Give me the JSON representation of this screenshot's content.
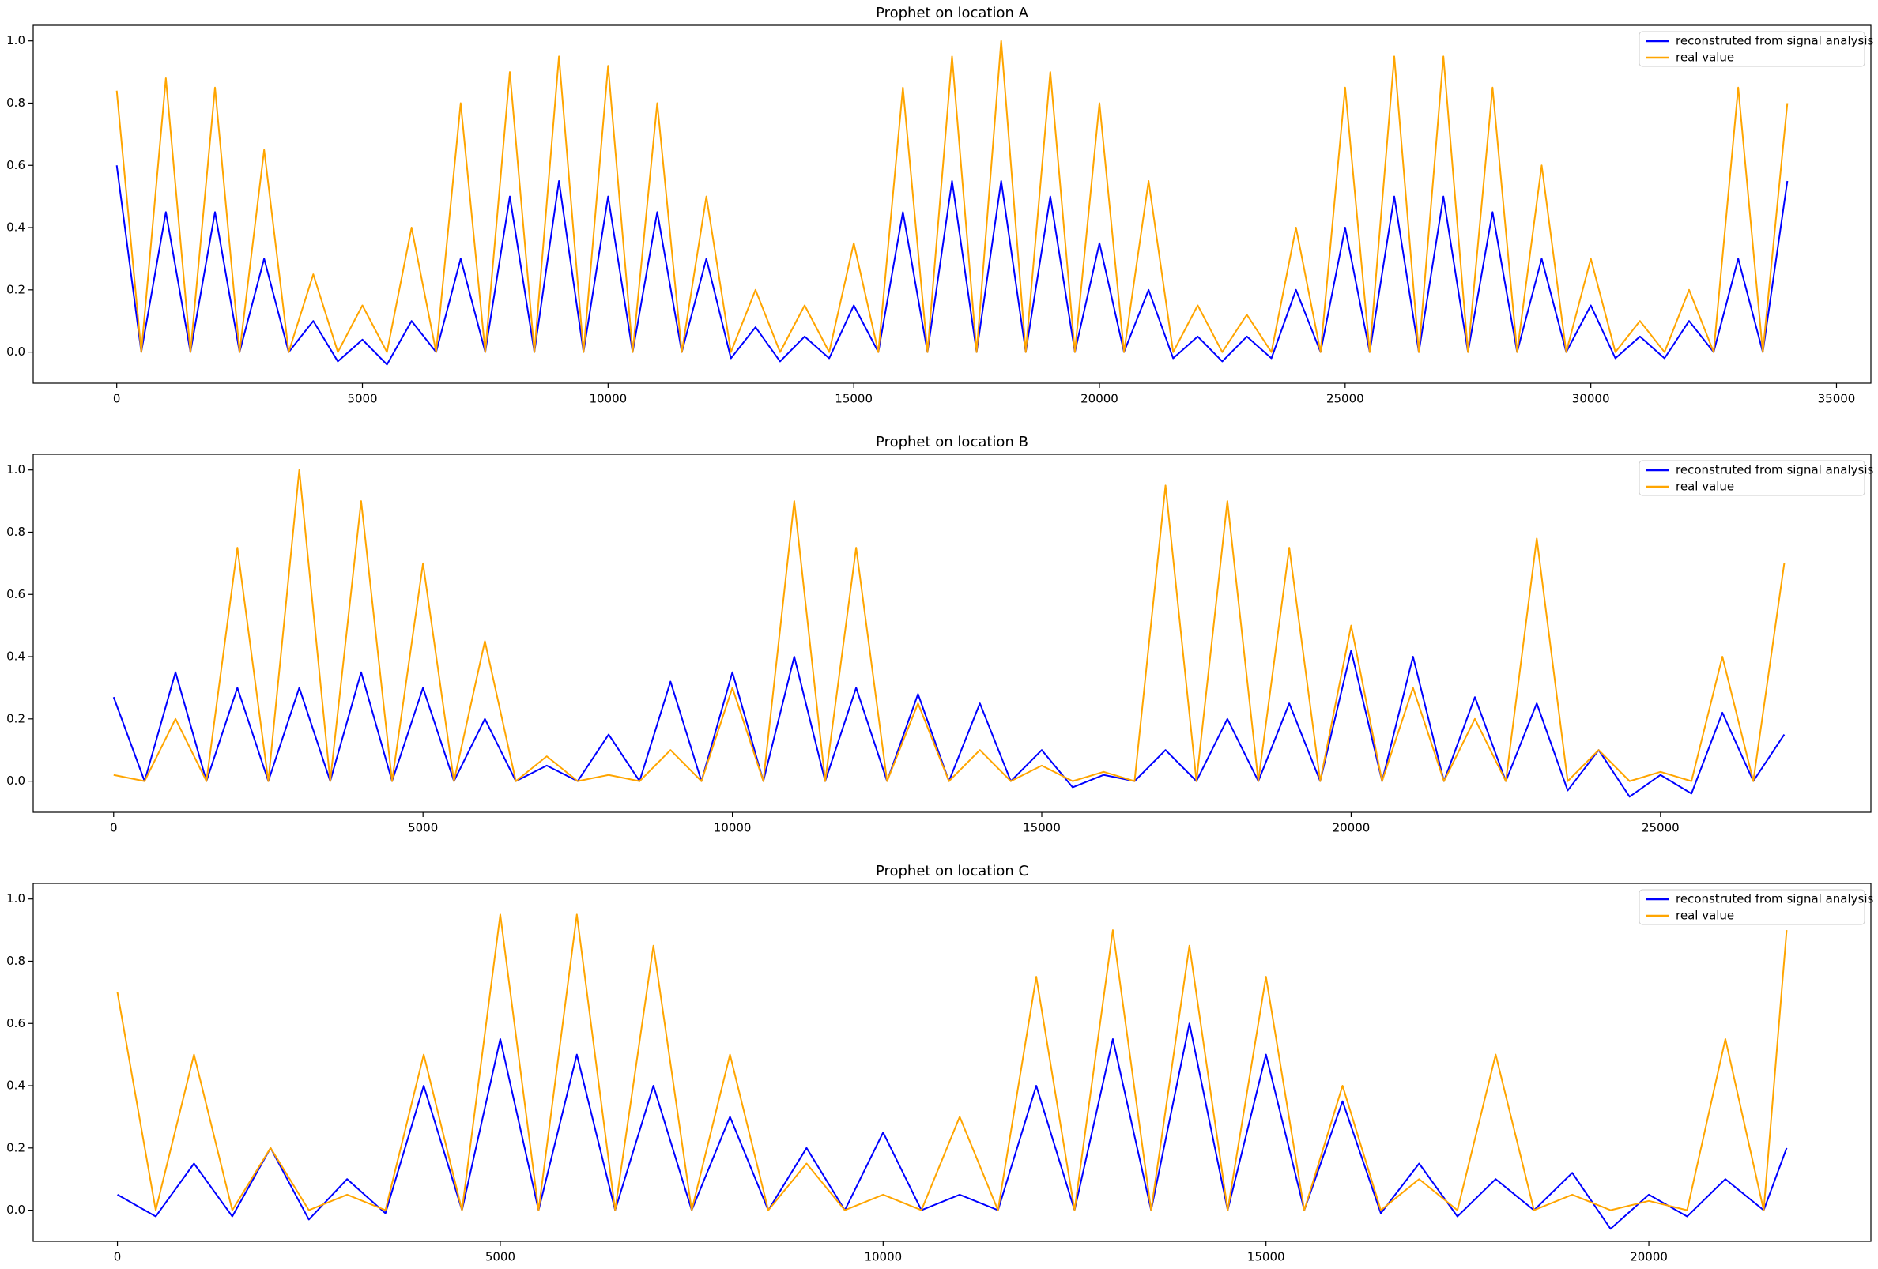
{
  "chart_data": [
    {
      "type": "line",
      "title": "Prophet on location A",
      "legend": "upper right",
      "x": [
        0,
        500,
        1000,
        1500,
        2000,
        2500,
        3000,
        3500,
        4000,
        4500,
        5000,
        5500,
        6000,
        6500,
        7000,
        7500,
        8000,
        8500,
        9000,
        9500,
        10000,
        10500,
        11000,
        11500,
        12000,
        12500,
        13000,
        13500,
        14000,
        14500,
        15000,
        15500,
        16000,
        16500,
        17000,
        17500,
        18000,
        18500,
        19000,
        19500,
        20000,
        20500,
        21000,
        21500,
        22000,
        22500,
        23000,
        23500,
        24000,
        24500,
        25000,
        25500,
        26000,
        26500,
        27000,
        27500,
        28000,
        28500,
        29000,
        29500,
        30000,
        30500,
        31000,
        31500,
        32000,
        32500,
        33000,
        33500,
        34000
      ],
      "series": [
        {
          "name": "reconstruted from signal analysis",
          "color": "#0000ff",
          "values": [
            0.6,
            0,
            0.45,
            0,
            0.45,
            0,
            0.3,
            0,
            0.1,
            -0.03,
            0.04,
            -0.04,
            0.1,
            0,
            0.3,
            0,
            0.5,
            0,
            0.55,
            0,
            0.5,
            0,
            0.45,
            0,
            0.3,
            -0.02,
            0.08,
            -0.03,
            0.05,
            -0.02,
            0.15,
            0,
            0.45,
            0,
            0.55,
            0,
            0.55,
            0,
            0.5,
            0,
            0.35,
            0,
            0.2,
            -0.02,
            0.05,
            -0.03,
            0.05,
            -0.02,
            0.2,
            0,
            0.4,
            0,
            0.5,
            0,
            0.5,
            0,
            0.45,
            0,
            0.3,
            0,
            0.15,
            -0.02,
            0.05,
            -0.02,
            0.1,
            0,
            0.3,
            0,
            0.55
          ]
        },
        {
          "name": "real value",
          "color": "#ffa500",
          "values": [
            0.84,
            0,
            0.88,
            0,
            0.85,
            0,
            0.65,
            0,
            0.25,
            0,
            0.15,
            0,
            0.4,
            0,
            0.8,
            0,
            0.9,
            0,
            0.95,
            0,
            0.92,
            0,
            0.8,
            0,
            0.5,
            0,
            0.2,
            0,
            0.15,
            0,
            0.35,
            0,
            0.85,
            0,
            0.95,
            0,
            1.0,
            0,
            0.9,
            0,
            0.8,
            0,
            0.55,
            0,
            0.15,
            0,
            0.12,
            0,
            0.4,
            0,
            0.85,
            0,
            0.95,
            0,
            0.95,
            0,
            0.85,
            0,
            0.6,
            0,
            0.3,
            0,
            0.1,
            0,
            0.2,
            0,
            0.85,
            0,
            0.8
          ]
        }
      ],
      "xlim": [
        -1700,
        35700
      ],
      "xticks": [
        0,
        5000,
        10000,
        15000,
        20000,
        25000,
        30000,
        35000
      ],
      "ylim": [
        -0.1,
        1.05
      ],
      "yticks": [
        {
          "value": 0,
          "label": "0.0"
        },
        {
          "value": 0.2,
          "label": "0.2"
        },
        {
          "value": 0.4,
          "label": "0.4"
        },
        {
          "value": 0.6,
          "label": "0.6"
        },
        {
          "value": 0.8,
          "label": "0.8"
        },
        {
          "value": 1.0,
          "label": "1.0"
        }
      ]
    },
    {
      "type": "line",
      "title": "Prophet on location B",
      "legend": "upper right",
      "x": [
        0,
        500,
        1000,
        1500,
        2000,
        2500,
        3000,
        3500,
        4000,
        4500,
        5000,
        5500,
        6000,
        6500,
        7000,
        7500,
        8000,
        8500,
        9000,
        9500,
        10000,
        10500,
        11000,
        11500,
        12000,
        12500,
        13000,
        13500,
        14000,
        14500,
        15000,
        15500,
        16000,
        16500,
        17000,
        17500,
        18000,
        18500,
        19000,
        19500,
        20000,
        20500,
        21000,
        21500,
        22000,
        22500,
        23000,
        23500,
        24000,
        24500,
        25000,
        25500,
        26000,
        26500,
        27000
      ],
      "series": [
        {
          "name": "reconstruted from signal analysis",
          "color": "#0000ff",
          "values": [
            0.27,
            0,
            0.35,
            0,
            0.3,
            0,
            0.3,
            0,
            0.35,
            0,
            0.3,
            0,
            0.2,
            0,
            0.05,
            0,
            0.15,
            0,
            0.32,
            0,
            0.35,
            0,
            0.4,
            0,
            0.3,
            0,
            0.28,
            0,
            0.25,
            0,
            0.1,
            -0.02,
            0.02,
            0,
            0.1,
            0,
            0.2,
            0,
            0.25,
            0,
            0.42,
            0,
            0.4,
            0,
            0.27,
            0,
            0.25,
            -0.03,
            0.1,
            -0.05,
            0.02,
            -0.04,
            0.22,
            0,
            0.15
          ]
        },
        {
          "name": "real value",
          "color": "#ffa500",
          "values": [
            0.02,
            0,
            0.2,
            0,
            0.75,
            0,
            1.0,
            0,
            0.9,
            0,
            0.7,
            0,
            0.45,
            0,
            0.08,
            0,
            0.02,
            0,
            0.1,
            0,
            0.3,
            0,
            0.9,
            0,
            0.75,
            0,
            0.25,
            0,
            0.1,
            0,
            0.05,
            0,
            0.03,
            0,
            0.95,
            0,
            0.9,
            0,
            0.75,
            0,
            0.5,
            0,
            0.3,
            0,
            0.2,
            0,
            0.78,
            0,
            0.1,
            0,
            0.03,
            0,
            0.4,
            0,
            0.7
          ]
        }
      ],
      "xlim": [
        -1300,
        28400
      ],
      "xticks": [
        0,
        5000,
        10000,
        15000,
        20000,
        25000
      ],
      "ylim": [
        -0.1,
        1.05
      ],
      "yticks": [
        {
          "value": 0,
          "label": "0.0"
        },
        {
          "value": 0.2,
          "label": "0.2"
        },
        {
          "value": 0.4,
          "label": "0.4"
        },
        {
          "value": 0.6,
          "label": "0.6"
        },
        {
          "value": 0.8,
          "label": "0.8"
        },
        {
          "value": 1.0,
          "label": "1.0"
        }
      ]
    },
    {
      "type": "line",
      "title": "Prophet on location C",
      "legend": "upper right",
      "x": [
        0,
        500,
        1000,
        1500,
        2000,
        2500,
        3000,
        3500,
        4000,
        4500,
        5000,
        5500,
        6000,
        6500,
        7000,
        7500,
        8000,
        8500,
        9000,
        9500,
        10000,
        10500,
        11000,
        11500,
        12000,
        12500,
        13000,
        13500,
        14000,
        14500,
        15000,
        15500,
        16000,
        16500,
        17000,
        17500,
        18000,
        18500,
        19000,
        19500,
        20000,
        20500,
        21000,
        21500,
        21800
      ],
      "series": [
        {
          "name": "reconstruted from signal analysis",
          "color": "#0000ff",
          "values": [
            0.05,
            -0.02,
            0.15,
            -0.02,
            0.2,
            -0.03,
            0.1,
            -0.01,
            0.4,
            0,
            0.55,
            0,
            0.5,
            0,
            0.4,
            0,
            0.3,
            0,
            0.2,
            0,
            0.25,
            0,
            0.05,
            0,
            0.4,
            0,
            0.55,
            0,
            0.6,
            0,
            0.5,
            0,
            0.35,
            -0.01,
            0.15,
            -0.02,
            0.1,
            0,
            0.12,
            -0.06,
            0.05,
            -0.02,
            0.1,
            0,
            0.2
          ]
        },
        {
          "name": "real value",
          "color": "#ffa500",
          "values": [
            0.7,
            0,
            0.5,
            0,
            0.2,
            0,
            0.05,
            0,
            0.5,
            0,
            0.95,
            0,
            0.95,
            0,
            0.85,
            0,
            0.5,
            0,
            0.15,
            0,
            0.05,
            0,
            0.3,
            0,
            0.75,
            0,
            0.9,
            0,
            0.85,
            0,
            0.75,
            0,
            0.4,
            0,
            0.1,
            0,
            0.5,
            0,
            0.05,
            0,
            0.03,
            0,
            0.55,
            0,
            0.9
          ]
        }
      ],
      "xlim": [
        -1100,
        22900
      ],
      "xticks": [
        0,
        5000,
        10000,
        15000,
        20000
      ],
      "ylim": [
        -0.1,
        1.05
      ],
      "yticks": [
        {
          "value": 0,
          "label": "0.0"
        },
        {
          "value": 0.2,
          "label": "0.2"
        },
        {
          "value": 0.4,
          "label": "0.4"
        },
        {
          "value": 0.6,
          "label": "0.6"
        },
        {
          "value": 0.8,
          "label": "0.8"
        },
        {
          "value": 1.0,
          "label": "1.0"
        }
      ]
    }
  ]
}
